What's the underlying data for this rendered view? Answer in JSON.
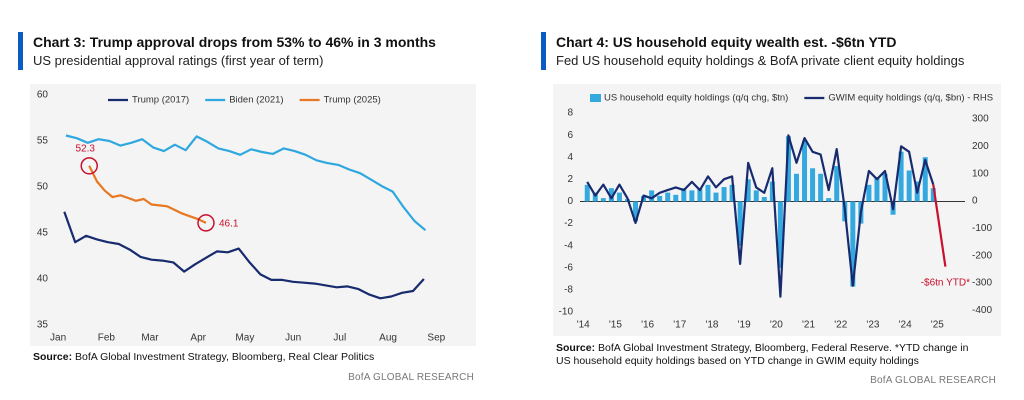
{
  "chart_data": [
    {
      "type": "line",
      "title": "Chart 3: Trump approval drops from 53% to 46% in 3 months",
      "subtitle": "US presidential approval ratings (first year of term)",
      "source_label": "Source:",
      "source": "BofA Global Investment Strategy, Bloomberg, Real Clear Politics",
      "brand": "BofA GLOBAL RESEARCH",
      "legend": "top",
      "grid": false,
      "xlim": [
        -2,
        255
      ],
      "xticks": [
        {
          "value": 0,
          "label": "Jan"
        },
        {
          "value": 31,
          "label": "Feb"
        },
        {
          "value": 59,
          "label": "Mar"
        },
        {
          "value": 90,
          "label": "Apr"
        },
        {
          "value": 120,
          "label": "May"
        },
        {
          "value": 151,
          "label": "Jun"
        },
        {
          "value": 181,
          "label": "Jul"
        },
        {
          "value": 212,
          "label": "Aug"
        },
        {
          "value": 243,
          "label": "Sep"
        }
      ],
      "ylim": [
        35,
        60
      ],
      "yticks": [
        35,
        40,
        45,
        50,
        55,
        60
      ],
      "series": [
        {
          "name": "Trump (2017)",
          "color": "#172b6e",
          "x": [
            4,
            11,
            18,
            25,
            32,
            39,
            46,
            53,
            60,
            67,
            74,
            81,
            88,
            95,
            102,
            109,
            116,
            123,
            130,
            137,
            144,
            151,
            158,
            165,
            172,
            179,
            186,
            193,
            200,
            207,
            214,
            221,
            228,
            235
          ],
          "values": [
            47.3,
            44.0,
            44.7,
            44.3,
            44.0,
            43.8,
            43.2,
            42.4,
            42.1,
            42.0,
            41.8,
            40.8,
            41.6,
            42.3,
            43.0,
            42.9,
            43.3,
            41.8,
            40.5,
            39.9,
            39.9,
            39.7,
            39.6,
            39.5,
            39.3,
            39.1,
            39.2,
            38.9,
            38.3,
            37.9,
            38.1,
            38.5,
            38.7,
            40.0
          ]
        },
        {
          "name": "Biden (2021)",
          "color": "#2fa7df",
          "x": [
            5,
            12,
            19,
            26,
            33,
            40,
            47,
            54,
            61,
            68,
            75,
            82,
            89,
            96,
            103,
            110,
            117,
            124,
            131,
            138,
            145,
            152,
            159,
            166,
            173,
            180,
            187,
            194,
            201,
            208,
            215,
            222,
            229,
            236
          ],
          "values": [
            55.6,
            55.3,
            54.8,
            55.2,
            55.0,
            54.5,
            54.8,
            55.2,
            54.3,
            53.9,
            54.6,
            54.0,
            55.5,
            54.9,
            54.2,
            53.9,
            53.5,
            54.1,
            53.8,
            53.6,
            54.2,
            53.9,
            53.5,
            52.9,
            52.6,
            52.4,
            51.9,
            51.5,
            50.8,
            50.1,
            49.5,
            47.8,
            46.3,
            45.3
          ]
        },
        {
          "name": "Trump (2025)",
          "color": "#e87722",
          "highlight_endpoints": true,
          "highlight_color": "#c8102e",
          "x": [
            20,
            25,
            30,
            35,
            40,
            45,
            50,
            55,
            60,
            65,
            70,
            75,
            80,
            85,
            90,
            95
          ],
          "values": [
            52.3,
            50.6,
            49.6,
            48.9,
            49.1,
            48.8,
            48.5,
            48.7,
            48.1,
            48.0,
            47.9,
            47.5,
            47.1,
            46.8,
            46.5,
            46.1
          ]
        }
      ]
    },
    {
      "type": "bar-line",
      "title": "Chart 4: US household equity wealth est. -$6tn YTD",
      "subtitle": "Fed US household equity holdings & BofA private client equity holdings",
      "source_label": "Source:",
      "source": "BofA Global Investment Strategy, Bloomberg, Federal Reserve. *YTD change in US household equity holdings based on YTD change in GWIM equity holdings",
      "brand": "BofA GLOBAL RESEARCH",
      "legend": "top",
      "grid": false,
      "zero_line": true,
      "annotation": "-$6tn YTD*",
      "xlim": [
        2013.9,
        2025.86
      ],
      "xticks": [
        {
          "value": 2014,
          "label": "'14"
        },
        {
          "value": 2015,
          "label": "'15"
        },
        {
          "value": 2016,
          "label": "'16"
        },
        {
          "value": 2017,
          "label": "'17"
        },
        {
          "value": 2018,
          "label": "'18"
        },
        {
          "value": 2019,
          "label": "'19"
        },
        {
          "value": 2020,
          "label": "'20"
        },
        {
          "value": 2021,
          "label": "'21"
        },
        {
          "value": 2022,
          "label": "'22"
        },
        {
          "value": 2023,
          "label": "'23"
        },
        {
          "value": 2024,
          "label": "'24"
        },
        {
          "value": 2025,
          "label": "'25"
        }
      ],
      "ylim": [
        -10,
        8
      ],
      "yticks": [
        -10,
        -8,
        -6,
        -4,
        -2,
        0,
        2,
        4,
        6,
        8
      ],
      "y2lim": [
        -406,
        322
      ],
      "y2ticks": [
        -400,
        -300,
        -200,
        -100,
        0,
        100,
        200,
        300
      ],
      "series": [
        {
          "name": "US household equity holdings (q/q chg, $tn)",
          "type": "bar",
          "color": "#33a9e0",
          "x": [
            2014.125,
            2014.375,
            2014.625,
            2014.875,
            2015.125,
            2015.375,
            2015.625,
            2015.875,
            2016.125,
            2016.375,
            2016.625,
            2016.875,
            2017.125,
            2017.375,
            2017.625,
            2017.875,
            2018.125,
            2018.375,
            2018.625,
            2018.875,
            2019.125,
            2019.375,
            2019.625,
            2019.875,
            2020.125,
            2020.375,
            2020.625,
            2020.875,
            2021.125,
            2021.375,
            2021.625,
            2021.875,
            2022.125,
            2022.375,
            2022.625,
            2022.875,
            2023.125,
            2023.375,
            2023.625,
            2023.875,
            2024.125,
            2024.375,
            2024.625,
            2024.875
          ],
          "values": [
            1.5,
            0.8,
            0.3,
            1.2,
            0.8,
            0.2,
            -1.8,
            0.5,
            1.0,
            0.5,
            0.8,
            0.6,
            1.2,
            1.0,
            1.1,
            1.5,
            0.8,
            1.3,
            1.5,
            -4.0,
            2.0,
            1.0,
            0.4,
            1.8,
            -6.0,
            5.9,
            2.5,
            5.5,
            3.0,
            2.5,
            0.3,
            3.2,
            -1.8,
            -7.7,
            -2.0,
            1.5,
            2.2,
            2.5,
            -1.2,
            4.5,
            2.8,
            1.8,
            4.0,
            1.2
          ]
        },
        {
          "name": "GWIM equity holdings (q/q, $bn) - RHS",
          "type": "line",
          "axis": "y2",
          "color": "#172b6e",
          "last_segment_color": "#c8102e",
          "x": [
            2014.125,
            2014.375,
            2014.625,
            2014.875,
            2015.125,
            2015.375,
            2015.625,
            2015.875,
            2016.125,
            2016.375,
            2016.625,
            2016.875,
            2017.125,
            2017.375,
            2017.625,
            2017.875,
            2018.125,
            2018.375,
            2018.625,
            2018.875,
            2019.125,
            2019.375,
            2019.625,
            2019.875,
            2020.125,
            2020.375,
            2020.625,
            2020.875,
            2021.125,
            2021.375,
            2021.625,
            2021.875,
            2022.125,
            2022.375,
            2022.625,
            2022.875,
            2023.125,
            2023.375,
            2023.625,
            2023.875,
            2024.125,
            2024.375,
            2024.625,
            2024.875,
            2025.25
          ],
          "values": [
            70,
            20,
            60,
            10,
            60,
            10,
            -80,
            20,
            10,
            30,
            40,
            50,
            40,
            70,
            40,
            90,
            50,
            80,
            90,
            -230,
            140,
            50,
            30,
            120,
            -350,
            240,
            140,
            230,
            180,
            170,
            40,
            190,
            -30,
            -310,
            -40,
            110,
            80,
            110,
            -30,
            200,
            180,
            30,
            150,
            60,
            -240
          ]
        }
      ]
    }
  ]
}
